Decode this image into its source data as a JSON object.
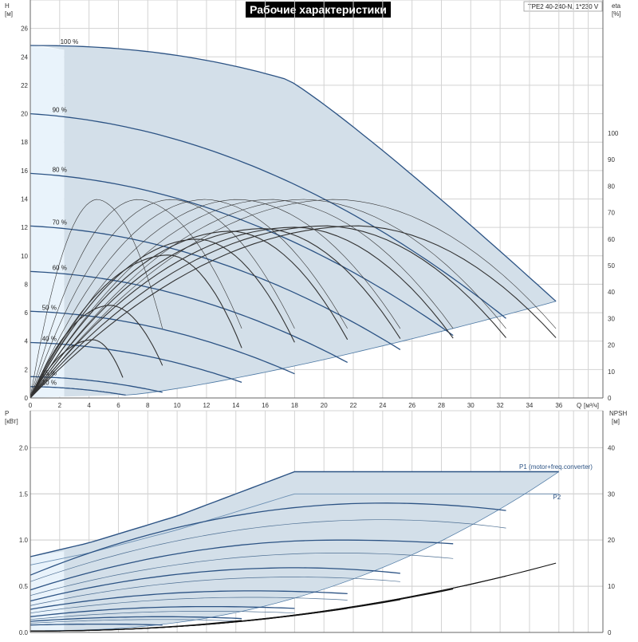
{
  "header": {
    "title": "Рабочие характеристики",
    "model": "TPE2 40-240-N, 1*230 V"
  },
  "colors": {
    "region_fill": "#d3dfe9",
    "region_fill_light": "#e9f3fb",
    "region_edge": "#4b77a3",
    "head_curve": "#2c5384",
    "eff_curve": "#333333",
    "npsh_curve": "#111111",
    "title_bg": "#000000",
    "title_fg": "#ffffff"
  },
  "chart_data": [
    {
      "type": "line",
      "panel": "head",
      "left_axis": {
        "label": "H",
        "unit": "[м]",
        "ticks": [
          0,
          2,
          4,
          6,
          8,
          10,
          12,
          14,
          16,
          18,
          20,
          22,
          24,
          26
        ],
        "range": [
          0,
          28
        ]
      },
      "right_axis": {
        "label": "eta",
        "unit": "[%]",
        "ticks": [
          0,
          10,
          20,
          30,
          40,
          50,
          60,
          70,
          80,
          90,
          100
        ],
        "range": [
          0,
          100
        ]
      },
      "x_axis": {
        "label": "Q",
        "unit": "[м³/ч]",
        "ticks": [
          0,
          2,
          4,
          6,
          8,
          10,
          12,
          14,
          16,
          18,
          20,
          22,
          24,
          26,
          28,
          30,
          32,
          34,
          36
        ],
        "range": [
          0,
          39
        ]
      },
      "grid": true,
      "head_curves": [
        {
          "label": "100 %",
          "h0": 24.8,
          "qmax": 35.8,
          "hend": 6.8,
          "flat": true
        },
        {
          "label": "90 %",
          "h0": 20.0,
          "qmax": 32.4,
          "hend": 5.6
        },
        {
          "label": "80 %",
          "h0": 15.8,
          "qmax": 28.8,
          "hend": 4.4
        },
        {
          "label": "70 %",
          "h0": 12.1,
          "qmax": 25.2,
          "hend": 3.4
        },
        {
          "label": "60 %",
          "h0": 8.9,
          "qmax": 21.6,
          "hend": 2.5
        },
        {
          "label": "50 %",
          "h0": 6.1,
          "qmax": 18.0,
          "hend": 1.7
        },
        {
          "label": "40 %",
          "h0": 3.9,
          "qmax": 14.4,
          "hend": 1.1
        },
        {
          "label": "25 %",
          "h0": 1.5,
          "qmax": 9.0,
          "hend": 0.4
        },
        {
          "label": "10 %",
          "h0": 0.8,
          "qmax": 6.5,
          "hend": 0.2
        }
      ],
      "efficiency_curves": [
        {
          "qmax": 6.3,
          "peak": 22,
          "peak_q": 4.3
        },
        {
          "qmax": 9.0,
          "peak": 35,
          "peak_q": 5.5
        },
        {
          "qmax": 9.0,
          "peak": 75,
          "peak_q": 4.6
        },
        {
          "qmax": 14.4,
          "peak": 75,
          "peak_q": 7.4
        },
        {
          "qmax": 14.4,
          "peak": 54,
          "peak_q": 9.5
        },
        {
          "qmax": 18.0,
          "peak": 75,
          "peak_q": 9.7
        },
        {
          "qmax": 18.0,
          "peak": 60,
          "peak_q": 11.5
        },
        {
          "qmax": 21.6,
          "peak": 75,
          "peak_q": 12.0
        },
        {
          "qmax": 21.6,
          "peak": 63,
          "peak_q": 13.8
        },
        {
          "qmax": 25.2,
          "peak": 75,
          "peak_q": 14.3
        },
        {
          "qmax": 25.2,
          "peak": 64,
          "peak_q": 16.0
        },
        {
          "qmax": 28.8,
          "peak": 75,
          "peak_q": 16.5
        },
        {
          "qmax": 28.8,
          "peak": 64.5,
          "peak_q": 18.2
        },
        {
          "qmax": 32.4,
          "peak": 75,
          "peak_q": 18.8
        },
        {
          "qmax": 32.4,
          "peak": 65,
          "peak_q": 20.3
        },
        {
          "qmax": 35.8,
          "peak": 75,
          "peak_q": 21.0
        },
        {
          "qmax": 35.8,
          "peak": 65,
          "peak_q": 22.5
        }
      ]
    },
    {
      "type": "line",
      "panel": "power",
      "left_axis": {
        "label": "P",
        "unit": "[кВт]",
        "ticks": [
          0.0,
          0.5,
          1.0,
          1.5,
          2.0
        ],
        "range": [
          0,
          2.4
        ]
      },
      "right_axis": {
        "label": "NPSH",
        "unit": "[м]",
        "ticks": [
          0,
          10,
          20,
          30,
          40
        ],
        "range": [
          0,
          48
        ]
      },
      "x_axis": {
        "range": [
          0,
          39
        ]
      },
      "grid": true,
      "series_labels": [
        {
          "name": "P1 (motor+freq.converter)",
          "q": 33.3,
          "p": 1.77
        },
        {
          "name": "P2",
          "q": 35.6,
          "p": 1.44
        }
      ],
      "p1_top": [
        [
          0,
          0.82
        ],
        [
          4,
          0.97
        ],
        [
          10,
          1.26
        ],
        [
          18,
          1.74
        ],
        [
          36,
          1.74
        ]
      ],
      "p2_top": [
        [
          0,
          0.73
        ],
        [
          4,
          0.86
        ],
        [
          10,
          1.11
        ],
        [
          18,
          1.5
        ],
        [
          36,
          1.5
        ]
      ],
      "p1_curves": [
        {
          "qmax": 32.4,
          "p0": 0.62,
          "pmax": 1.4,
          "q_peak": 24,
          "pend": 1.32
        },
        {
          "qmax": 28.8,
          "p0": 0.46,
          "pmax": 1.0,
          "q_peak": 21,
          "pend": 0.96
        },
        {
          "qmax": 25.2,
          "p0": 0.34,
          "pmax": 0.7,
          "q_peak": 18,
          "pend": 0.64
        },
        {
          "qmax": 21.6,
          "p0": 0.25,
          "pmax": 0.45,
          "q_peak": 15,
          "pend": 0.42
        },
        {
          "qmax": 18.0,
          "p0": 0.17,
          "pmax": 0.28,
          "q_peak": 12,
          "pend": 0.26
        },
        {
          "qmax": 14.4,
          "p0": 0.12,
          "pmax": 0.17,
          "q_peak": 9,
          "pend": 0.15
        },
        {
          "qmax": 9.0,
          "p0": 0.08,
          "pmax": 0.09,
          "q_peak": 5,
          "pend": 0.08
        }
      ],
      "p2_curves": [
        {
          "qmax": 32.4,
          "p0": 0.55,
          "pmax": 1.22,
          "q_peak": 24,
          "pend": 1.13
        },
        {
          "qmax": 28.8,
          "p0": 0.4,
          "pmax": 0.86,
          "q_peak": 21,
          "pend": 0.8
        },
        {
          "qmax": 25.2,
          "p0": 0.29,
          "pmax": 0.6,
          "q_peak": 18,
          "pend": 0.55
        },
        {
          "qmax": 21.6,
          "p0": 0.21,
          "pmax": 0.38,
          "q_peak": 15,
          "pend": 0.35
        },
        {
          "qmax": 18.0,
          "p0": 0.14,
          "pmax": 0.23,
          "q_peak": 12,
          "pend": 0.21
        },
        {
          "qmax": 14.4,
          "p0": 0.1,
          "pmax": 0.14,
          "q_peak": 9,
          "pend": 0.12
        }
      ],
      "npsh_curves": [
        {
          "qmax": 35.8,
          "end": 15.0
        },
        {
          "qmax": 32.4,
          "end": 12.2
        },
        {
          "qmax": 28.8,
          "end": 9.4
        },
        {
          "qmax": 25.2,
          "end": 7.1
        },
        {
          "qmax": 21.6,
          "end": 5.2
        },
        {
          "qmax": 18.0,
          "end": 3.7
        },
        {
          "qmax": 14.4,
          "end": 2.6
        }
      ]
    }
  ]
}
